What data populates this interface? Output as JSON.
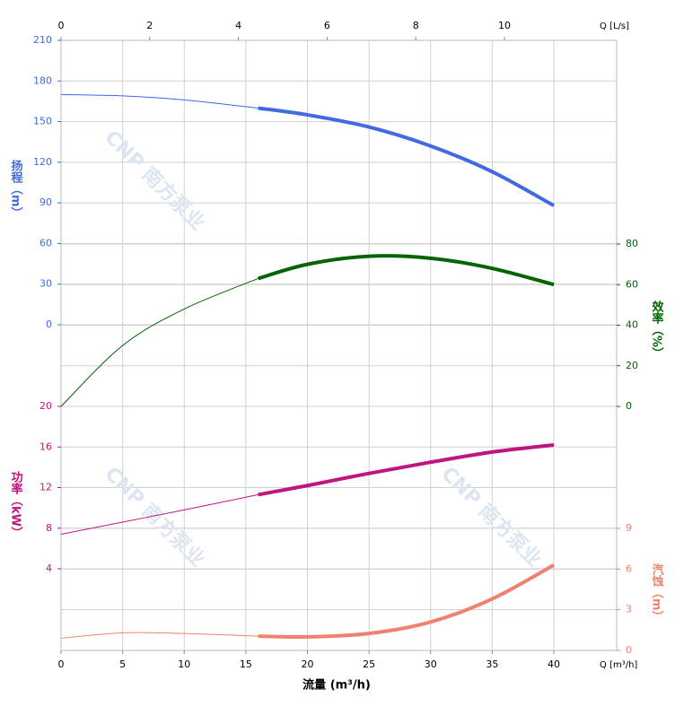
{
  "chart_data": {
    "type": "line",
    "xlabel": "流量 (m³/h)",
    "x_unit": "Q [m³/h]",
    "x2_unit": "Q [L/s]",
    "watermark": "CNP 南方泵业",
    "x": [
      0,
      5,
      10,
      16,
      20,
      25,
      30,
      35,
      40
    ],
    "xlim": [
      0,
      45.1
    ],
    "xticks": [
      0,
      5,
      10,
      15,
      20,
      25,
      30,
      35,
      40
    ],
    "x2lim": [
      0,
      12.53
    ],
    "x2ticks": [
      0,
      2,
      4,
      6,
      8,
      10
    ],
    "operating_range": [
      16,
      40
    ],
    "grid": true,
    "series": [
      {
        "name": "扬程（m）",
        "color": "#4169e1",
        "side": "left",
        "values": [
          170,
          169,
          166,
          160,
          155,
          146,
          132,
          113,
          88
        ],
        "ylim": [
          0,
          210
        ],
        "yticks": [
          0,
          30,
          60,
          90,
          120,
          150,
          180,
          210
        ]
      },
      {
        "name": "效率（%）",
        "color": "#006400",
        "side": "right",
        "values": [
          0,
          30,
          48,
          63,
          70,
          74,
          73,
          68,
          60
        ],
        "ylim": [
          0,
          80
        ],
        "yticks": [
          0,
          20,
          40,
          60,
          80
        ]
      },
      {
        "name": "功率（kW）",
        "color": "#c0157f",
        "side": "left",
        "values": [
          7.4,
          8.6,
          9.8,
          11.3,
          12.2,
          13.4,
          14.5,
          15.5,
          16.2
        ],
        "ylim": [
          4,
          20
        ],
        "yticks": [
          4,
          8,
          12,
          16,
          20
        ]
      },
      {
        "name": "汽蚀（m）",
        "color": "#f08070",
        "side": "right",
        "values": [
          0.9,
          1.3,
          1.25,
          1.05,
          1.0,
          1.25,
          2.1,
          3.8,
          6.3
        ],
        "ylim": [
          0,
          9
        ],
        "yticks": [
          0,
          3,
          6,
          9
        ]
      }
    ]
  }
}
